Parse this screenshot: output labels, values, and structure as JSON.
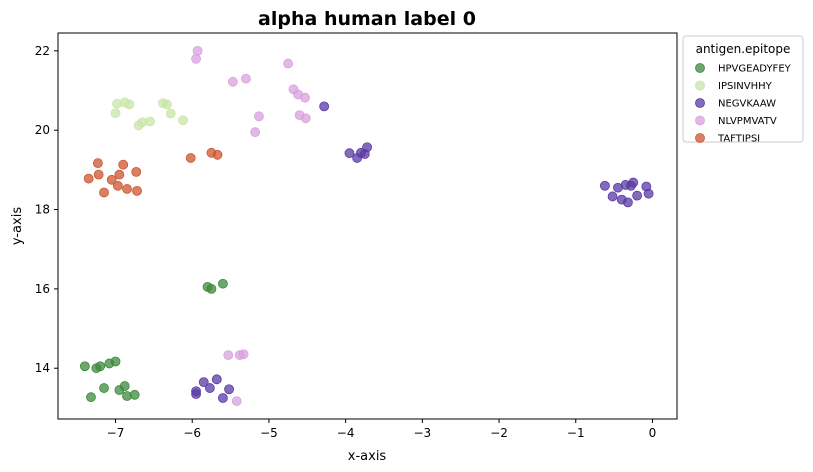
{
  "chart_data": {
    "type": "scatter",
    "title": "alpha human label 0",
    "xlabel": "x-axis",
    "ylabel": "y-axis",
    "xlim": [
      -7.75,
      0.32
    ],
    "ylim": [
      12.72,
      22.45
    ],
    "xticks": [
      -7,
      -6,
      -5,
      -4,
      -3,
      -2,
      -1,
      0
    ],
    "yticks": [
      14,
      16,
      18,
      20,
      22
    ],
    "xtick_labels": [
      "−7",
      "−6",
      "−5",
      "−4",
      "−3",
      "−2",
      "−1",
      "0"
    ],
    "ytick_labels": [
      "14",
      "16",
      "18",
      "20",
      "22"
    ],
    "grid": false,
    "legend": {
      "title": "antigen.epitope",
      "placement": "outside-top-right"
    },
    "series": [
      {
        "name": "HPVGEADYFEY",
        "color": "#3d8a3d",
        "points": [
          [
            -7.4,
            14.05
          ],
          [
            -7.25,
            14.0
          ],
          [
            -7.2,
            14.05
          ],
          [
            -7.08,
            14.12
          ],
          [
            -7.0,
            14.17
          ],
          [
            -7.32,
            13.27
          ],
          [
            -7.15,
            13.5
          ],
          [
            -6.95,
            13.45
          ],
          [
            -6.88,
            13.55
          ],
          [
            -6.85,
            13.3
          ],
          [
            -6.75,
            13.33
          ],
          [
            -5.8,
            16.05
          ],
          [
            -5.75,
            16.0
          ],
          [
            -5.6,
            16.13
          ]
        ]
      },
      {
        "name": "IPSINVHHY",
        "color": "#c9e6a8",
        "points": [
          [
            -7.0,
            20.43
          ],
          [
            -6.98,
            20.67
          ],
          [
            -6.88,
            20.7
          ],
          [
            -6.82,
            20.65
          ],
          [
            -6.7,
            20.12
          ],
          [
            -6.65,
            20.2
          ],
          [
            -6.55,
            20.22
          ],
          [
            -6.38,
            20.68
          ],
          [
            -6.33,
            20.65
          ],
          [
            -6.28,
            20.42
          ],
          [
            -6.12,
            20.25
          ]
        ]
      },
      {
        "name": "NEGVKAAW",
        "color": "#5a3aa6",
        "points": [
          [
            -4.28,
            20.6
          ],
          [
            -3.95,
            19.42
          ],
          [
            -3.85,
            19.3
          ],
          [
            -3.8,
            19.43
          ],
          [
            -3.75,
            19.4
          ],
          [
            -3.72,
            19.57
          ],
          [
            -0.62,
            18.6
          ],
          [
            -0.52,
            18.33
          ],
          [
            -0.45,
            18.55
          ],
          [
            -0.4,
            18.25
          ],
          [
            -0.35,
            18.62
          ],
          [
            -0.32,
            18.18
          ],
          [
            -0.28,
            18.6
          ],
          [
            -0.25,
            18.68
          ],
          [
            -0.2,
            18.35
          ],
          [
            -0.08,
            18.58
          ],
          [
            -0.05,
            18.4
          ],
          [
            -5.95,
            13.35
          ],
          [
            -5.95,
            13.42
          ],
          [
            -5.85,
            13.65
          ],
          [
            -5.77,
            13.5
          ],
          [
            -5.68,
            13.72
          ],
          [
            -5.6,
            13.25
          ],
          [
            -5.52,
            13.47
          ]
        ]
      },
      {
        "name": "NLVPMVATV",
        "color": "#d8a2dd",
        "points": [
          [
            -5.95,
            21.8
          ],
          [
            -5.93,
            22.0
          ],
          [
            -5.47,
            21.22
          ],
          [
            -5.3,
            21.3
          ],
          [
            -5.18,
            19.95
          ],
          [
            -5.13,
            20.35
          ],
          [
            -4.75,
            21.68
          ],
          [
            -4.68,
            21.03
          ],
          [
            -4.62,
            20.9
          ],
          [
            -4.6,
            20.38
          ],
          [
            -4.53,
            20.82
          ],
          [
            -4.52,
            20.3
          ],
          [
            -5.53,
            14.33
          ],
          [
            -5.38,
            14.33
          ],
          [
            -5.33,
            14.35
          ],
          [
            -5.42,
            13.17
          ]
        ]
      },
      {
        "name": "TAFTIPSI",
        "color": "#cc5530",
        "points": [
          [
            -7.35,
            18.78
          ],
          [
            -7.23,
            19.17
          ],
          [
            -7.22,
            18.88
          ],
          [
            -7.15,
            18.43
          ],
          [
            -7.05,
            18.75
          ],
          [
            -6.97,
            18.6
          ],
          [
            -6.95,
            18.88
          ],
          [
            -6.9,
            19.13
          ],
          [
            -6.85,
            18.52
          ],
          [
            -6.73,
            18.95
          ],
          [
            -6.72,
            18.47
          ],
          [
            -6.02,
            19.3
          ],
          [
            -5.75,
            19.43
          ],
          [
            -5.67,
            19.38
          ]
        ]
      }
    ]
  }
}
